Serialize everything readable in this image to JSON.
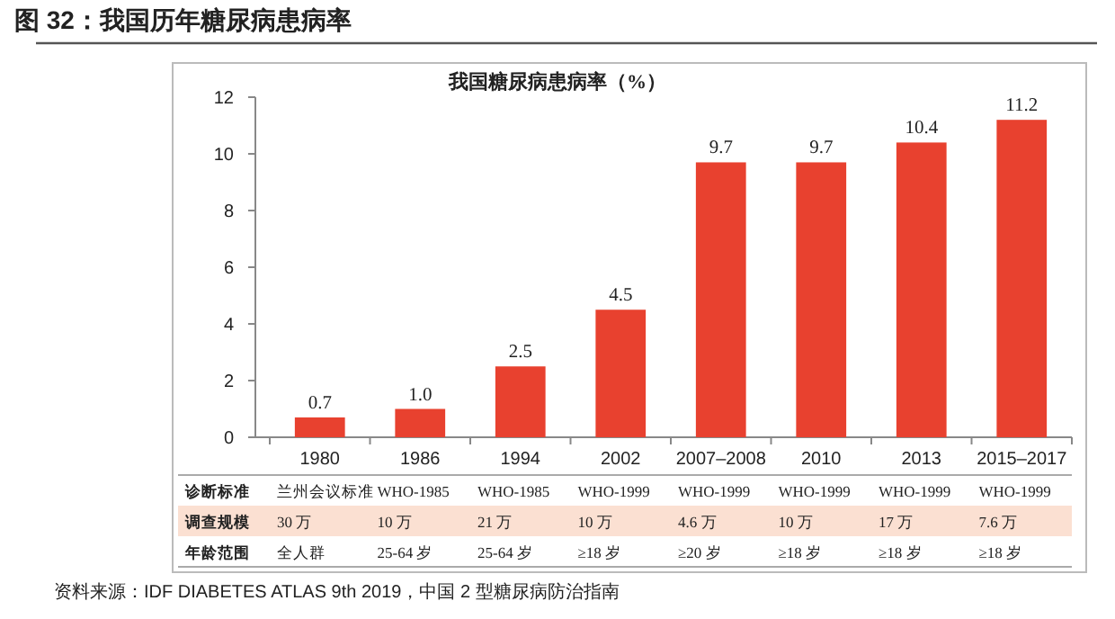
{
  "chart_data": {
    "type": "bar",
    "title": "图 32：我国历年糖尿病患病率",
    "subtitle": "我国糖尿病患病率（%）",
    "categories": [
      "1980",
      "1986",
      "1994",
      "2002",
      "2007–2008",
      "2010",
      "2013",
      "2015–2017"
    ],
    "values": [
      0.7,
      1.0,
      2.5,
      4.5,
      9.7,
      9.7,
      10.4,
      11.2
    ],
    "color": "#e8412f",
    "ylim": [
      0,
      12
    ],
    "yticks": [
      0,
      2,
      4,
      6,
      8,
      10,
      12
    ],
    "value_labels": [
      "0.7",
      "1.0",
      "2.5",
      "4.5",
      "9.7",
      "9.7",
      "10.4",
      "11.2"
    ],
    "grid": false,
    "annotations": [
      "诊断标准",
      "兰州会议标准",
      "WHO-1985",
      "WHO-1985",
      "WHO-1999",
      "WHO-1999",
      "WHO-1999",
      "WHO-1999",
      "WHO-1999",
      "调查规模",
      "30 万",
      "10 万",
      "21 万",
      "10 万",
      "4.6 万",
      "10 万",
      "17 万",
      "7.6 万",
      "年龄范围",
      "全人群",
      "25-64 岁",
      "25-64 岁",
      "≥18 岁",
      "≥20 岁",
      "≥18 岁",
      "≥18 岁",
      "≥18 岁",
      "资料来源：IDF DIABETES ATLAS 9th 2019，中国 2 型糖尿病防治指南"
    ]
  }
}
